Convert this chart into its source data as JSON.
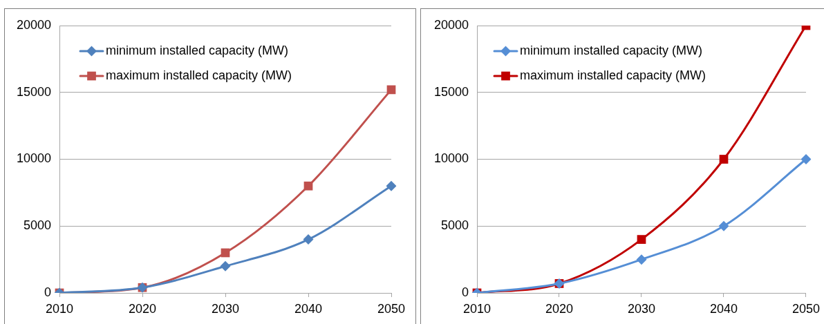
{
  "chart_data": [
    {
      "type": "line",
      "categories": [
        "2010",
        "2020",
        "2030",
        "2040",
        "2050"
      ],
      "series": [
        {
          "name": "minimum installed capacity (MW)",
          "color": "#4f81bd",
          "marker": "diamond",
          "values": [
            0,
            400,
            2000,
            4000,
            8000
          ]
        },
        {
          "name": "maximum installed capacity (MW)",
          "color": "#c0504d",
          "marker": "square",
          "values": [
            0,
            400,
            3000,
            8000,
            15200
          ]
        }
      ],
      "ylim": [
        0,
        20000
      ],
      "yticks": [
        0,
        5000,
        10000,
        15000,
        20000
      ],
      "grid": "y",
      "legend": "top left"
    },
    {
      "type": "line",
      "categories": [
        "2010",
        "2020",
        "2030",
        "2040",
        "2050"
      ],
      "series": [
        {
          "name": "minimum installed capacity (MW)",
          "color": "#558ed5",
          "marker": "diamond",
          "values": [
            0,
            700,
            2500,
            5000,
            10000
          ]
        },
        {
          "name": "maximum installed capacity (MW)",
          "color": "#c00000",
          "marker": "square",
          "values": [
            0,
            700,
            4000,
            10000,
            20000
          ]
        }
      ],
      "ylim": [
        0,
        20000
      ],
      "yticks": [
        0,
        5000,
        10000,
        15000,
        20000
      ],
      "grid": "y",
      "legend": "top left"
    }
  ]
}
